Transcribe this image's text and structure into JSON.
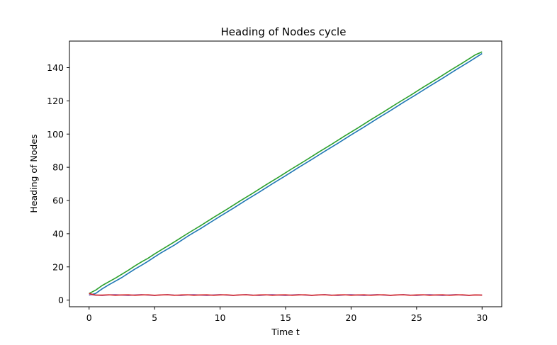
{
  "chart_data": {
    "type": "line",
    "title": "Heading of Nodes cycle",
    "xlabel": "Time t",
    "ylabel": "Heading of Nodes",
    "xlim": [
      -1.5,
      31.5
    ],
    "ylim": [
      -4,
      156
    ],
    "xticks": [
      0,
      5,
      10,
      15,
      20,
      25,
      30
    ],
    "yticks": [
      0,
      20,
      40,
      60,
      80,
      100,
      120,
      140
    ],
    "grid": false,
    "legend": false,
    "series": [
      {
        "color": "#1f77b4",
        "x": [
          0,
          0.5,
          1,
          1.5,
          2,
          2.5,
          3,
          3.5,
          4,
          4.5,
          5,
          5.5,
          6,
          6.5,
          7,
          7.5,
          8,
          8.5,
          9,
          9.5,
          10,
          10.5,
          11,
          11.5,
          12,
          12.5,
          13,
          13.5,
          14,
          14.5,
          15,
          15.5,
          16,
          16.5,
          17,
          17.5,
          18,
          18.5,
          19,
          19.5,
          20,
          20.5,
          21,
          21.5,
          22,
          22.5,
          23,
          23.5,
          24,
          24.5,
          25,
          25.5,
          26,
          26.5,
          27,
          27.5,
          28,
          28.5,
          29,
          29.5,
          30
        ],
        "y": [
          3.0,
          4.0,
          6.8,
          9.2,
          11.4,
          13.6,
          16.2,
          18.7,
          21.0,
          23.4,
          26.0,
          28.5,
          30.8,
          33.1,
          35.7,
          38.3,
          40.7,
          43.0,
          45.5,
          48.0,
          50.5,
          52.9,
          55.3,
          57.8,
          60.3,
          62.7,
          65.1,
          67.6,
          70.1,
          72.5,
          74.9,
          77.4,
          79.9,
          82.3,
          84.7,
          87.2,
          89.7,
          92.1,
          94.5,
          97.0,
          99.5,
          101.9,
          104.3,
          106.8,
          109.3,
          111.7,
          114.1,
          116.6,
          119.1,
          121.5,
          123.9,
          126.4,
          128.9,
          131.3,
          133.7,
          136.2,
          138.7,
          141.1,
          143.5,
          146.0,
          148.5
        ]
      },
      {
        "color": "#2ca02c",
        "x": [
          0,
          0.5,
          1,
          1.5,
          2,
          2.5,
          3,
          3.5,
          4,
          4.5,
          5,
          5.5,
          6,
          6.5,
          7,
          7.5,
          8,
          8.5,
          9,
          9.5,
          10,
          10.5,
          11,
          11.5,
          12,
          12.5,
          13,
          13.5,
          14,
          14.5,
          15,
          15.5,
          16,
          16.5,
          17,
          17.5,
          18,
          18.5,
          19,
          19.5,
          20,
          20.5,
          21,
          21.5,
          22,
          22.5,
          23,
          23.5,
          24,
          24.5,
          25,
          25.5,
          26,
          26.5,
          27,
          27.5,
          28,
          28.5,
          29,
          29.5,
          30
        ],
        "y": [
          4.0,
          6.0,
          8.8,
          11.0,
          13.2,
          15.6,
          18.0,
          20.6,
          23.0,
          25.2,
          27.8,
          30.2,
          32.6,
          35.0,
          37.5,
          40.0,
          42.4,
          44.8,
          47.3,
          49.8,
          52.2,
          54.6,
          57.1,
          59.6,
          62.0,
          64.4,
          66.9,
          69.4,
          71.8,
          74.2,
          76.7,
          79.2,
          81.6,
          84.0,
          86.5,
          89.0,
          91.4,
          93.8,
          96.3,
          98.8,
          101.2,
          103.6,
          106.1,
          108.6,
          111.0,
          113.4,
          115.9,
          118.4,
          120.8,
          123.2,
          125.7,
          128.2,
          130.6,
          133.0,
          135.5,
          138.0,
          140.4,
          142.8,
          145.3,
          147.8,
          149.5
        ]
      },
      {
        "color": "#9467bd",
        "x": [
          0,
          0.5,
          1,
          1.5,
          2,
          2.5,
          3,
          3.5,
          4,
          4.5,
          5,
          5.5,
          6,
          6.5,
          7,
          7.5,
          8,
          8.5,
          9,
          9.5,
          10,
          10.5,
          11,
          11.5,
          12,
          12.5,
          13,
          13.5,
          14,
          14.5,
          15,
          15.5,
          16,
          16.5,
          17,
          17.5,
          18,
          18.5,
          19,
          19.5,
          20,
          20.5,
          21,
          21.5,
          22,
          22.5,
          23,
          23.5,
          24,
          24.5,
          25,
          25.5,
          26,
          26.5,
          27,
          27.5,
          28,
          28.5,
          29,
          29.5,
          30
        ],
        "y": [
          3.3,
          3.0,
          2.8,
          3.1,
          3.3,
          3.0,
          2.8,
          3.1,
          3.3,
          3.0,
          2.8,
          3.1,
          3.3,
          3.0,
          2.8,
          3.1,
          3.3,
          3.0,
          2.8,
          3.1,
          3.3,
          3.0,
          2.8,
          3.1,
          3.3,
          3.0,
          2.8,
          3.1,
          3.3,
          3.0,
          2.8,
          3.1,
          3.3,
          3.0,
          2.8,
          3.1,
          3.3,
          3.0,
          2.8,
          3.1,
          3.3,
          3.0,
          2.8,
          3.1,
          3.3,
          3.0,
          2.8,
          3.1,
          3.3,
          3.0,
          2.8,
          3.1,
          3.3,
          3.0,
          2.8,
          3.1,
          3.3,
          3.0,
          2.8,
          3.1,
          3.0
        ]
      },
      {
        "color": "#d62728",
        "x": [
          0,
          0.5,
          1,
          1.5,
          2,
          2.5,
          3,
          3.5,
          4,
          4.5,
          5,
          5.5,
          6,
          6.5,
          7,
          7.5,
          8,
          8.5,
          9,
          9.5,
          10,
          10.5,
          11,
          11.5,
          12,
          12.5,
          13,
          13.5,
          14,
          14.5,
          15,
          15.5,
          16,
          16.5,
          17,
          17.5,
          18,
          18.5,
          19,
          19.5,
          20,
          20.5,
          21,
          21.5,
          22,
          22.5,
          23,
          23.5,
          24,
          24.5,
          25,
          25.5,
          26,
          26.5,
          27,
          27.5,
          28,
          28.5,
          29,
          29.5,
          30
        ],
        "y": [
          4.0,
          3.0,
          3.0,
          3.2,
          2.9,
          3.1,
          3.2,
          2.9,
          3.1,
          3.2,
          2.9,
          3.1,
          3.2,
          2.9,
          3.1,
          3.2,
          2.9,
          3.1,
          3.2,
          2.9,
          3.1,
          3.2,
          2.9,
          3.1,
          3.2,
          2.9,
          3.1,
          3.2,
          2.9,
          3.1,
          3.2,
          2.9,
          3.1,
          3.2,
          2.9,
          3.1,
          3.2,
          2.9,
          3.1,
          3.2,
          2.9,
          3.1,
          3.2,
          2.9,
          3.1,
          3.2,
          2.9,
          3.1,
          3.2,
          2.9,
          3.1,
          3.2,
          2.9,
          3.1,
          3.2,
          2.9,
          3.1,
          3.2,
          2.9,
          3.1,
          3.0
        ]
      }
    ]
  }
}
